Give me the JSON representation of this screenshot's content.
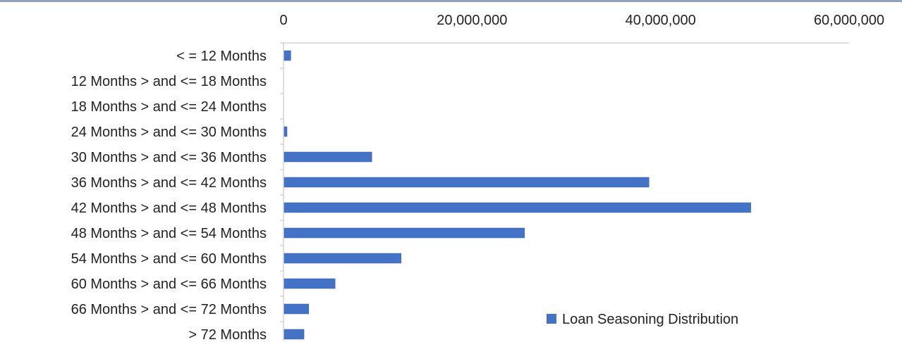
{
  "chart_data": {
    "type": "bar",
    "orientation": "horizontal",
    "title": "",
    "xlabel": "",
    "ylabel": "",
    "xlim": [
      0,
      60000000
    ],
    "x_ticks": [
      0,
      20000000,
      40000000,
      60000000
    ],
    "x_tick_labels": [
      "0",
      "20,000,000",
      "40,000,000",
      "60,000,000"
    ],
    "x_axis_position": "top",
    "grid": false,
    "categories": [
      "< = 12 Months",
      "12 Months > and <= 18 Months",
      "18 Months > and <= 24 Months",
      "24 Months > and <= 30 Months",
      "30 Months > and <= 36 Months",
      "36 Months > and <= 42 Months",
      "42 Months > and <= 48 Months",
      "48 Months > and <= 54 Months",
      "54 Months > and <= 60 Months",
      "60 Months > and <= 66 Months",
      "66 Months > and <= 72 Months",
      "> 72 Months"
    ],
    "series": [
      {
        "name": "Loan Seasoning Distribution",
        "color": "#4472c4",
        "values": [
          700000,
          0,
          0,
          300000,
          9300000,
          38700000,
          49500000,
          25500000,
          12400000,
          5400000,
          2600000,
          2100000
        ]
      }
    ],
    "legend": {
      "position": "bottom-right",
      "entries": [
        "Loan Seasoning Distribution"
      ]
    }
  }
}
